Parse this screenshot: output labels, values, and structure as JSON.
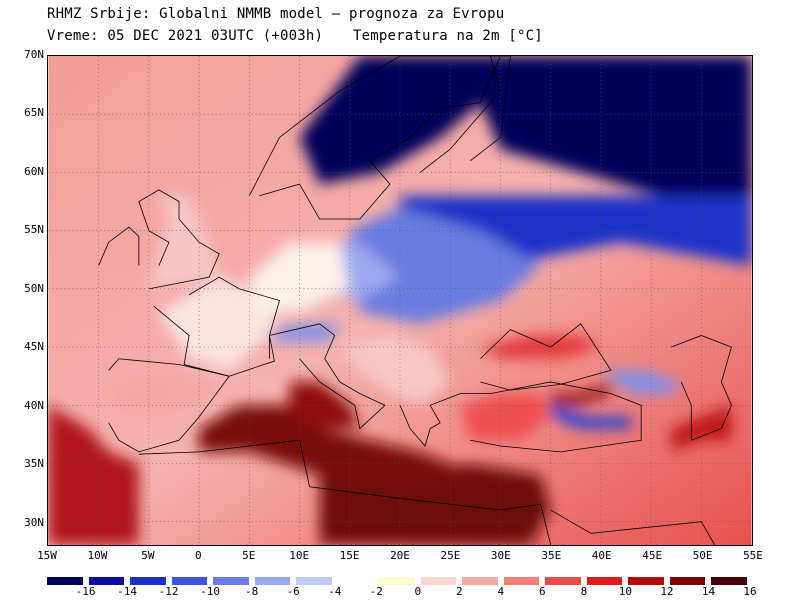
{
  "header": {
    "line1": "RHMZ Srbije: Globalni NMMB model — prognoza za Evropu",
    "line2": "Vreme: 05 DEC 2021 03UTC (+003h)",
    "line3": "Temperatura na 2m [°C]"
  },
  "map": {
    "projection": "lat-lon",
    "extent": {
      "lon_min": -15,
      "lon_max": 55,
      "lat_min": 28,
      "lat_max": 70
    },
    "grid": "dotted",
    "lat_labels": [
      {
        "lat": 70,
        "text": "70N"
      },
      {
        "lat": 65,
        "text": "65N"
      },
      {
        "lat": 60,
        "text": "60N"
      },
      {
        "lat": 55,
        "text": "55N"
      },
      {
        "lat": 50,
        "text": "50N"
      },
      {
        "lat": 45,
        "text": "45N"
      },
      {
        "lat": 40,
        "text": "40N"
      },
      {
        "lat": 35,
        "text": "35N"
      },
      {
        "lat": 30,
        "text": "30N"
      }
    ],
    "lon_labels": [
      {
        "lon": -15,
        "text": "15W"
      },
      {
        "lon": -10,
        "text": "10W"
      },
      {
        "lon": -5,
        "text": "5W"
      },
      {
        "lon": 0,
        "text": "0"
      },
      {
        "lon": 5,
        "text": "5E"
      },
      {
        "lon": 10,
        "text": "10E"
      },
      {
        "lon": 15,
        "text": "15E"
      },
      {
        "lon": 20,
        "text": "20E"
      },
      {
        "lon": 25,
        "text": "25E"
      },
      {
        "lon": 30,
        "text": "30E"
      },
      {
        "lon": 35,
        "text": "35E"
      },
      {
        "lon": 40,
        "text": "40E"
      },
      {
        "lon": 45,
        "text": "45E"
      },
      {
        "lon": 50,
        "text": "50E"
      },
      {
        "lon": 55,
        "text": "55E"
      }
    ],
    "regions": [
      {
        "name": "warm-atlantic-south",
        "color": "#b0161b",
        "points": [
          [
            -15,
            28
          ],
          [
            -15,
            40
          ],
          [
            -11,
            38
          ],
          [
            -9,
            36
          ],
          [
            -6,
            35
          ],
          [
            -6,
            28
          ]
        ]
      },
      {
        "name": "hot-sahara-east",
        "color": "#6e0808",
        "points": [
          [
            12,
            28
          ],
          [
            12,
            34
          ],
          [
            20,
            34
          ],
          [
            27,
            35
          ],
          [
            34,
            34
          ],
          [
            35,
            31
          ],
          [
            33,
            28
          ]
        ]
      },
      {
        "name": "hot-mediterranean",
        "color": "#7a0a0a",
        "points": [
          [
            0,
            38
          ],
          [
            4,
            40
          ],
          [
            9,
            40
          ],
          [
            12,
            38
          ],
          [
            17,
            37
          ],
          [
            22,
            36
          ],
          [
            28,
            34
          ],
          [
            20,
            33
          ],
          [
            12,
            34
          ],
          [
            5,
            36
          ],
          [
            0,
            36
          ]
        ]
      },
      {
        "name": "warm-tyrrhenian",
        "color": "#900c0c",
        "points": [
          [
            9,
            42
          ],
          [
            12,
            42
          ],
          [
            15,
            40
          ],
          [
            16,
            38
          ],
          [
            12,
            38
          ],
          [
            9,
            39
          ]
        ]
      },
      {
        "name": "warm-black-sea-east",
        "color": "#900c0c",
        "points": [
          [
            35,
            41
          ],
          [
            38,
            41
          ],
          [
            41,
            42
          ],
          [
            41,
            41
          ],
          [
            38,
            40
          ],
          [
            35,
            40
          ]
        ]
      },
      {
        "name": "warm-caspian-south",
        "color": "#c01818",
        "points": [
          [
            47,
            36
          ],
          [
            50,
            37
          ],
          [
            53,
            37
          ],
          [
            53,
            40
          ],
          [
            50,
            39
          ],
          [
            47,
            38
          ]
        ]
      },
      {
        "name": "cold-scandinavia",
        "color": "#03065a",
        "points": [
          [
            10,
            63
          ],
          [
            16,
            70
          ],
          [
            30,
            70
          ],
          [
            28,
            66
          ],
          [
            24,
            63
          ],
          [
            18,
            60
          ],
          [
            12,
            59
          ]
        ]
      },
      {
        "name": "cold-northern-russia",
        "color": "#03065a",
        "points": [
          [
            30,
            70
          ],
          [
            55,
            70
          ],
          [
            55,
            58
          ],
          [
            46,
            58
          ],
          [
            38,
            60
          ],
          [
            30,
            62
          ],
          [
            28,
            66
          ]
        ]
      },
      {
        "name": "cold-central-russia",
        "color": "#1a32c8",
        "points": [
          [
            20,
            58
          ],
          [
            38,
            58
          ],
          [
            55,
            58
          ],
          [
            55,
            52
          ],
          [
            42,
            54
          ],
          [
            30,
            52
          ],
          [
            20,
            54
          ]
        ]
      },
      {
        "name": "cool-eastern-europe",
        "color": "#6a7ce0",
        "points": [
          [
            15,
            55
          ],
          [
            20,
            57
          ],
          [
            28,
            55
          ],
          [
            34,
            52
          ],
          [
            30,
            49
          ],
          [
            22,
            47
          ],
          [
            16,
            48
          ]
        ]
      },
      {
        "name": "cool-poland",
        "color": "#9ca8f0",
        "points": [
          [
            10,
            54
          ],
          [
            16,
            54
          ],
          [
            20,
            51
          ],
          [
            16,
            49
          ],
          [
            11,
            50
          ]
        ]
      },
      {
        "name": "cold-turkey-east",
        "color": "#2040d0",
        "points": [
          [
            35,
            40
          ],
          [
            39,
            39
          ],
          [
            43,
            39
          ],
          [
            43,
            38
          ],
          [
            38,
            38
          ],
          [
            35,
            39
          ]
        ]
      },
      {
        "name": "cool-caucasus",
        "color": "#8090e8",
        "points": [
          [
            40,
            43
          ],
          [
            44,
            43
          ],
          [
            48,
            42
          ],
          [
            47,
            41
          ],
          [
            43,
            41
          ]
        ]
      },
      {
        "name": "cool-alps",
        "color": "#8090e8",
        "points": [
          [
            6,
            46
          ],
          [
            10,
            47
          ],
          [
            14,
            47
          ],
          [
            13,
            45.5
          ],
          [
            8,
            45.5
          ]
        ]
      },
      {
        "name": "mild-france",
        "color": "#fbe3e0",
        "points": [
          [
            -4,
            48
          ],
          [
            2,
            51
          ],
          [
            8,
            49
          ],
          [
            7,
            46
          ],
          [
            3,
            43
          ],
          [
            -1,
            44
          ]
        ]
      },
      {
        "name": "mild-germany",
        "color": "#fbf0ea",
        "points": [
          [
            5,
            51
          ],
          [
            9,
            54
          ],
          [
            14,
            54
          ],
          [
            15,
            50
          ],
          [
            10,
            48
          ],
          [
            6,
            48
          ]
        ]
      },
      {
        "name": "mild-britain",
        "color": "#f7c6c4",
        "points": [
          [
            -5,
            50
          ],
          [
            -3,
            56
          ],
          [
            -4,
            58
          ],
          [
            -1,
            58
          ],
          [
            1,
            54
          ],
          [
            2,
            51
          ]
        ]
      },
      {
        "name": "mild-ireland",
        "color": "#f2a6a2",
        "points": [
          [
            -10,
            52
          ],
          [
            -8,
            55
          ],
          [
            -6,
            55
          ],
          [
            -6,
            52
          ]
        ]
      },
      {
        "name": "mild-balkans",
        "color": "#f7c8c4",
        "points": [
          [
            14,
            45
          ],
          [
            19,
            46
          ],
          [
            23,
            45
          ],
          [
            25,
            42
          ],
          [
            22,
            40
          ],
          [
            19,
            41
          ],
          [
            16,
            43
          ]
        ]
      },
      {
        "name": "warm-ukraine-south",
        "color": "#e53a3a",
        "points": [
          [
            28,
            45
          ],
          [
            33,
            46
          ],
          [
            38,
            46
          ],
          [
            40,
            45
          ],
          [
            36,
            44
          ],
          [
            30,
            44
          ]
        ]
      },
      {
        "name": "warm-turkey-west",
        "color": "#ee5050",
        "points": [
          [
            26,
            40
          ],
          [
            30,
            41
          ],
          [
            34,
            41
          ],
          [
            35,
            39
          ],
          [
            32,
            37
          ],
          [
            27,
            37
          ]
        ]
      },
      {
        "name": "mild-iberia-north",
        "color": "#f4a8a4",
        "points": [
          [
            -9,
            42
          ],
          [
            -4,
            43
          ],
          [
            2,
            42
          ],
          [
            0,
            40
          ],
          [
            -5,
            39
          ],
          [
            -9,
            40
          ]
        ]
      }
    ],
    "countries": [
      {
        "name": "iberia",
        "points": [
          [
            -9,
            43
          ],
          [
            -8,
            44
          ],
          [
            -2,
            43.5
          ],
          [
            3,
            42.5
          ],
          [
            0,
            39
          ],
          [
            -2,
            37
          ],
          [
            -6,
            36
          ],
          [
            -8,
            37
          ],
          [
            -9,
            38.5
          ]
        ]
      },
      {
        "name": "great-britain",
        "points": [
          [
            -5,
            50
          ],
          [
            1,
            51
          ],
          [
            2,
            53
          ],
          [
            0,
            54
          ],
          [
            -2,
            56
          ],
          [
            -2,
            57.5
          ],
          [
            -4,
            58.5
          ],
          [
            -6,
            57.5
          ],
          [
            -5,
            55
          ],
          [
            -3,
            54
          ],
          [
            -4,
            52
          ]
        ]
      },
      {
        "name": "ireland",
        "points": [
          [
            -10,
            52
          ],
          [
            -9,
            54
          ],
          [
            -7,
            55.3
          ],
          [
            -6,
            54.5
          ],
          [
            -6,
            52
          ]
        ]
      },
      {
        "name": "france",
        "points": [
          [
            -4.5,
            48.5
          ],
          [
            -1,
            46
          ],
          [
            -1.5,
            43.5
          ],
          [
            3,
            42.5
          ],
          [
            7.5,
            43.8
          ],
          [
            7,
            46
          ],
          [
            8,
            49
          ],
          [
            4,
            50
          ],
          [
            2,
            51
          ],
          [
            -1,
            49.5
          ]
        ]
      },
      {
        "name": "italy",
        "points": [
          [
            7,
            44
          ],
          [
            7,
            46
          ],
          [
            12,
            47
          ],
          [
            13.5,
            46
          ],
          [
            12.5,
            44
          ],
          [
            14,
            42
          ],
          [
            16,
            41
          ],
          [
            18.5,
            40
          ],
          [
            16,
            38
          ],
          [
            15.5,
            40
          ],
          [
            12,
            42
          ],
          [
            10,
            44
          ]
        ]
      },
      {
        "name": "scandinavia",
        "points": [
          [
            5,
            58
          ],
          [
            8,
            63
          ],
          [
            14,
            67
          ],
          [
            20,
            70
          ],
          [
            30,
            70
          ],
          [
            28,
            66
          ],
          [
            24,
            65.5
          ],
          [
            21,
            63
          ],
          [
            17,
            61
          ],
          [
            19,
            59
          ],
          [
            16,
            56
          ],
          [
            12,
            56
          ],
          [
            10,
            59
          ],
          [
            6,
            58
          ]
        ]
      },
      {
        "name": "finland",
        "points": [
          [
            22,
            60
          ],
          [
            25,
            62
          ],
          [
            28,
            65
          ],
          [
            30,
            67
          ],
          [
            29,
            70
          ],
          [
            31,
            70
          ],
          [
            30,
            63
          ],
          [
            27,
            61
          ]
        ]
      },
      {
        "name": "greece",
        "points": [
          [
            20,
            40
          ],
          [
            21,
            38
          ],
          [
            22.5,
            36.5
          ],
          [
            23,
            38
          ],
          [
            24,
            38.5
          ],
          [
            23,
            40
          ],
          [
            26,
            41
          ]
        ]
      },
      {
        "name": "turkey",
        "points": [
          [
            26,
            41
          ],
          [
            29,
            41
          ],
          [
            35,
            42
          ],
          [
            41,
            41
          ],
          [
            44,
            40
          ],
          [
            44,
            37
          ],
          [
            36,
            36
          ],
          [
            30,
            36.5
          ],
          [
            27,
            37
          ]
        ]
      },
      {
        "name": "north-africa",
        "points": [
          [
            -6,
            35.8
          ],
          [
            0,
            36
          ],
          [
            10,
            37
          ],
          [
            11,
            33
          ],
          [
            20,
            32
          ],
          [
            30,
            31
          ],
          [
            34,
            31.5
          ],
          [
            35,
            28
          ]
        ]
      },
      {
        "name": "arabia",
        "points": [
          [
            35,
            31
          ],
          [
            39,
            29
          ],
          [
            50,
            30
          ],
          [
            52,
            27
          ],
          [
            55,
            26
          ]
        ]
      },
      {
        "name": "caspian",
        "points": [
          [
            47,
            45
          ],
          [
            50,
            46
          ],
          [
            53,
            45
          ],
          [
            52,
            42
          ],
          [
            53,
            40
          ],
          [
            52,
            38
          ],
          [
            49,
            37
          ],
          [
            49,
            40
          ],
          [
            48,
            42
          ]
        ]
      },
      {
        "name": "black-sea",
        "points": [
          [
            28,
            44
          ],
          [
            31,
            46.5
          ],
          [
            35,
            45
          ],
          [
            38,
            47
          ],
          [
            41,
            43
          ],
          [
            36,
            41.8
          ],
          [
            31,
            41.3
          ],
          [
            28,
            42
          ]
        ]
      }
    ]
  },
  "colorbar": {
    "colors": [
      "#03065a",
      "#050da0",
      "#1a32c8",
      "#3a55d8",
      "#6a7ce0",
      "#9ca8f0",
      "#c0c8f8",
      "#ffffff",
      "#fdfccc",
      "#fbd4cc",
      "#f7aaa4",
      "#f07f78",
      "#e84c48",
      "#e01a1a",
      "#b00a0a",
      "#7a0505",
      "#4a0000"
    ],
    "labels": [
      "-16",
      "-14",
      "-12",
      "-10",
      "-8",
      "-6",
      "-4",
      "-2",
      "0",
      "2",
      "4",
      "6",
      "8",
      "10",
      "12",
      "14",
      "16"
    ]
  }
}
